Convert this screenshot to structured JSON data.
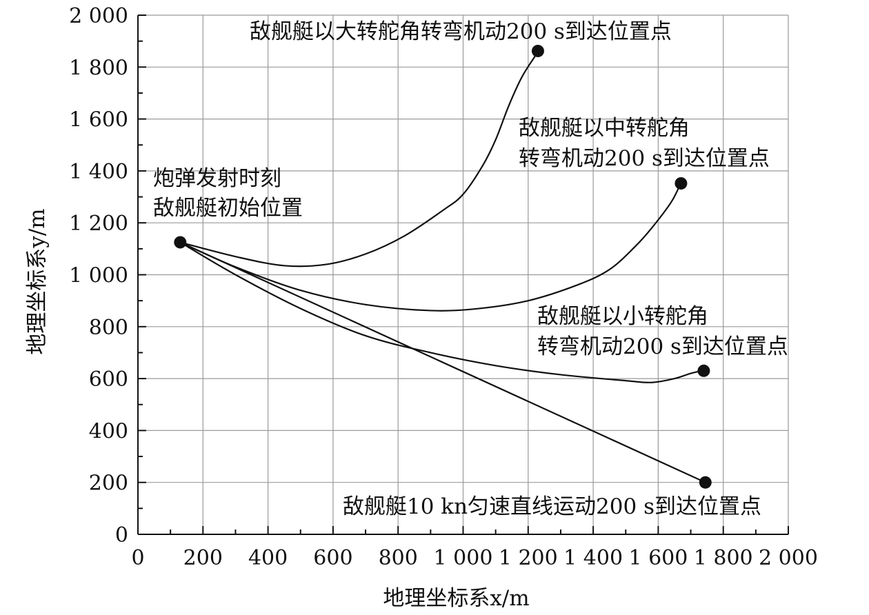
{
  "chart_data": {
    "type": "line",
    "xlabel": "地理坐标系x/m",
    "ylabel": "地理坐标系y/m",
    "xlim": [
      0,
      2000
    ],
    "ylim": [
      0,
      2000
    ],
    "x_ticks": [
      "0",
      "200",
      "400",
      "600",
      "800",
      "1 000",
      "1 200",
      "1 400",
      "1 600",
      "1 800",
      "2 000"
    ],
    "y_ticks": [
      "0",
      "200",
      "400",
      "600",
      "800",
      "1 000",
      "1 200",
      "1 400",
      "1 600",
      "1 800",
      "2 000"
    ],
    "grid": true,
    "start_point": {
      "x": 130,
      "y": 1125,
      "label_lines": [
        "炮弹发射时刻",
        "敌舰艇初始位置"
      ]
    },
    "series": [
      {
        "name": "大转舵角",
        "label_lines": [
          "敌舰艇以大转舵角转弯机动200 s到达位置点"
        ],
        "points": [
          [
            130,
            1125
          ],
          [
            300,
            1070
          ],
          [
            450,
            1035
          ],
          [
            580,
            1040
          ],
          [
            700,
            1080
          ],
          [
            820,
            1150
          ],
          [
            940,
            1250
          ],
          [
            1000,
            1310
          ],
          [
            1060,
            1420
          ],
          [
            1100,
            1520
          ],
          [
            1140,
            1650
          ],
          [
            1180,
            1760
          ],
          [
            1220,
            1840
          ],
          [
            1230,
            1862
          ]
        ],
        "end": [
          1230,
          1862
        ]
      },
      {
        "name": "中转舵角",
        "label_lines": [
          "敌舰艇以中转舵角",
          "转弯机动200 s到达位置点"
        ],
        "points": [
          [
            130,
            1125
          ],
          [
            300,
            1030
          ],
          [
            500,
            940
          ],
          [
            700,
            885
          ],
          [
            900,
            862
          ],
          [
            1050,
            870
          ],
          [
            1200,
            900
          ],
          [
            1350,
            960
          ],
          [
            1450,
            1020
          ],
          [
            1530,
            1110
          ],
          [
            1580,
            1180
          ],
          [
            1640,
            1280
          ],
          [
            1670,
            1355
          ]
        ],
        "end": [
          1670,
          1352
        ]
      },
      {
        "name": "小转舵角",
        "label_lines": [
          "敌舰艇以小转舵角",
          "转弯机动200 s到达位置点"
        ],
        "points": [
          [
            130,
            1125
          ],
          [
            300,
            1000
          ],
          [
            500,
            870
          ],
          [
            700,
            765
          ],
          [
            900,
            700
          ],
          [
            1100,
            650
          ],
          [
            1300,
            615
          ],
          [
            1500,
            592
          ],
          [
            1580,
            585
          ],
          [
            1650,
            600
          ],
          [
            1700,
            620
          ],
          [
            1740,
            632
          ]
        ],
        "end": [
          1740,
          630
        ]
      },
      {
        "name": "10 kn匀速直线运动",
        "label_lines": [
          "敌舰艇10 kn匀速直线运动200 s到达位置点"
        ],
        "points": [
          [
            130,
            1125
          ],
          [
            1745,
            200
          ]
        ],
        "end": [
          1745,
          200
        ]
      }
    ]
  }
}
